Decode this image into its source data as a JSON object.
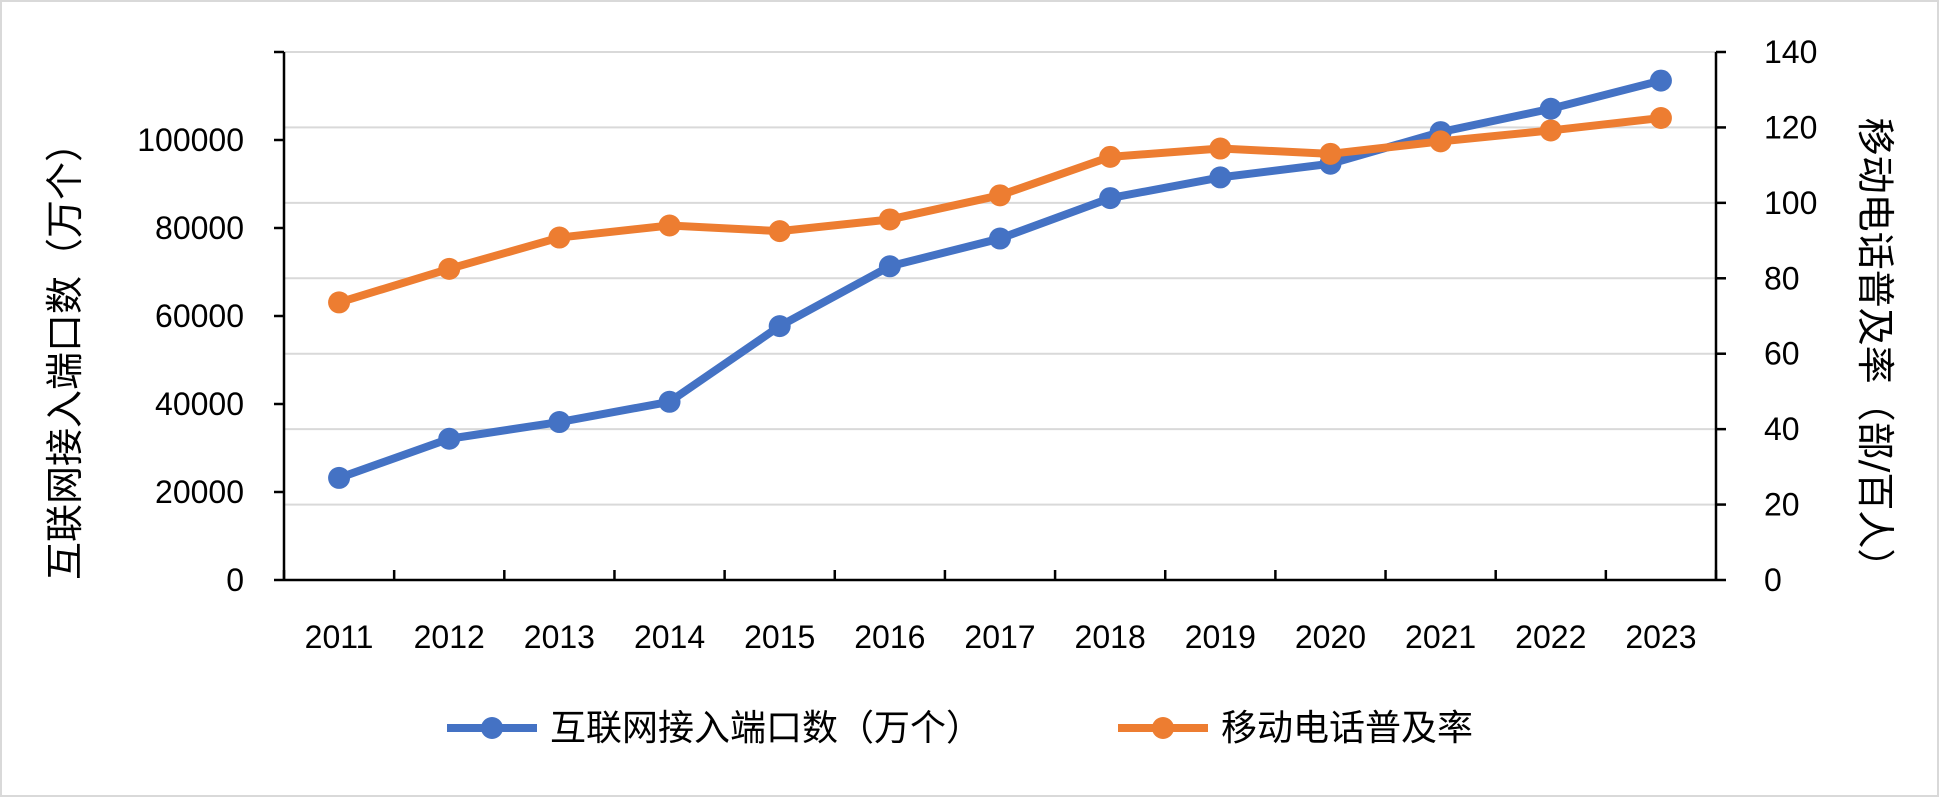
{
  "chart_data": {
    "type": "line",
    "categories": [
      "2011",
      "2012",
      "2013",
      "2014",
      "2015",
      "2016",
      "2017",
      "2018",
      "2019",
      "2020",
      "2021",
      "2022",
      "2023"
    ],
    "y_left": {
      "label": "互联网接入端口数（万个）",
      "range": [
        0,
        120000
      ],
      "ticks": [
        "0",
        "20000",
        "40000",
        "60000",
        "80000",
        "100000"
      ],
      "tick_values": [
        0,
        20000,
        40000,
        60000,
        80000,
        100000
      ]
    },
    "y_right": {
      "label": "移动电话普及率（部/百人）",
      "range": [
        0,
        140
      ],
      "ticks": [
        "0",
        "20",
        "40",
        "60",
        "80",
        "100",
        "120",
        "140"
      ],
      "tick_values": [
        0,
        20,
        40,
        60,
        80,
        100,
        120,
        140
      ]
    },
    "series": [
      {
        "name": "互联网接入端口数（万个）",
        "axis": "left",
        "color": "#4472C4",
        "values": [
          23200,
          32100,
          35900,
          40500,
          57700,
          71300,
          77600,
          86800,
          91500,
          94600,
          101800,
          107100,
          113500
        ]
      },
      {
        "name": "移动电话普及率",
        "axis": "right",
        "color": "#ED7D31",
        "values": [
          73.6,
          82.5,
          90.8,
          94.0,
          92.5,
          95.6,
          102.0,
          112.2,
          114.4,
          113.0,
          116.3,
          119.2,
          122.5
        ]
      }
    ],
    "grid": true,
    "legend_position": "bottom"
  }
}
